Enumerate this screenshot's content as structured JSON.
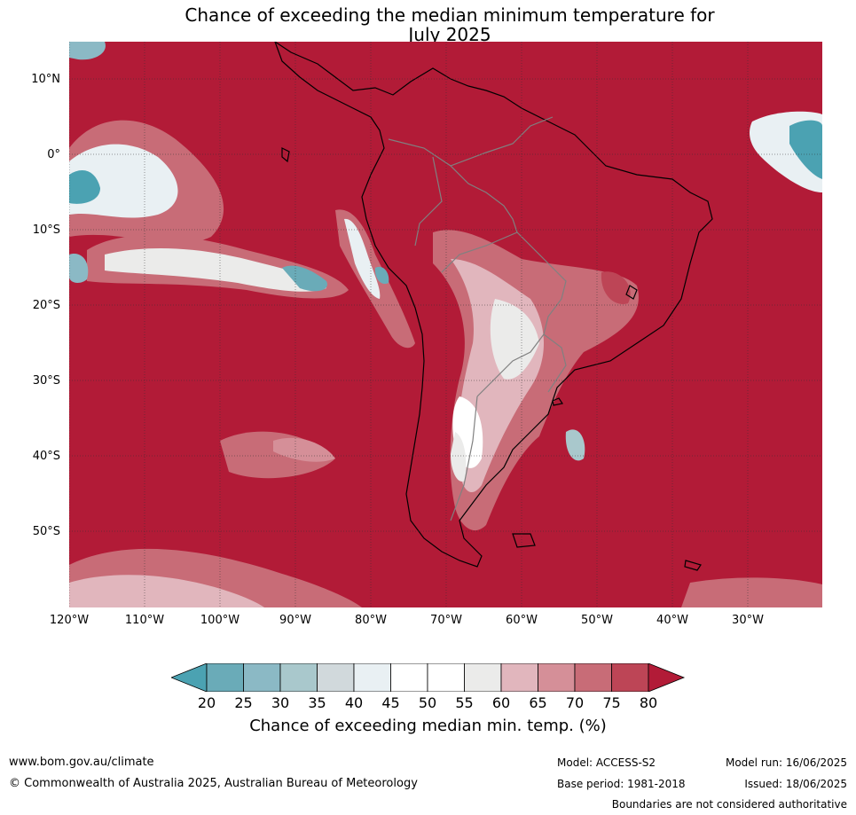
{
  "title": {
    "line1": "Chance of exceeding the median minimum temperature for",
    "line2": "July 2025"
  },
  "map": {
    "background_color": "#b21b37",
    "coast_color": "#000000",
    "border_color": "#808080",
    "lat_labels": [
      "10°N",
      "0°",
      "10°S",
      "20°S",
      "30°S",
      "40°S",
      "50°S"
    ],
    "lon_labels": [
      "120°W",
      "110°W",
      "100°W",
      "90°W",
      "80°W",
      "70°W",
      "60°W",
      "50°W",
      "40°W",
      "30°W"
    ]
  },
  "legend": {
    "ticks": [
      "20",
      "25",
      "30",
      "35",
      "40",
      "45",
      "50",
      "55",
      "60",
      "65",
      "70",
      "75",
      "80"
    ],
    "colors": [
      "#4ba2b2",
      "#6aabb8",
      "#8bb9c5",
      "#a9c8cc",
      "#d1d9dc",
      "#e9f0f3",
      "#ffffff",
      "#ffffff",
      "#ebebea",
      "#e1b6bd",
      "#d58f98",
      "#c86c77",
      "#bd4556",
      "#b21b37"
    ],
    "label": "Chance of exceeding median min. temp. (%)"
  },
  "footer": {
    "url": "www.bom.gov.au/climate",
    "copyright": "© Commonwealth of Australia 2025, Australian Bureau of Meteorology",
    "model": "Model: ACCESS-S2",
    "base_period": "Base period: 1981-2018",
    "model_run": "Model run: 16/06/2025",
    "issued": "Issued: 18/06/2025",
    "disclaimer": "Boundaries are not considered authoritative"
  }
}
